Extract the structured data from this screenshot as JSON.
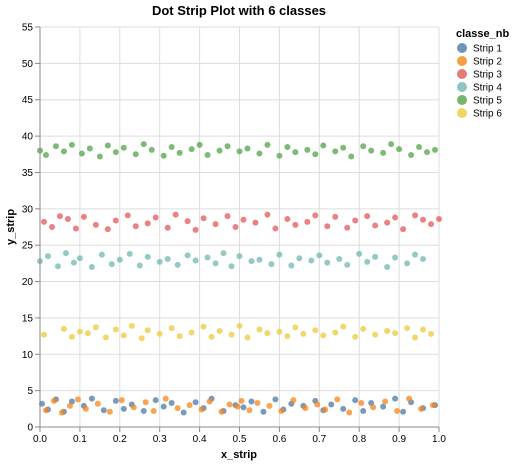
{
  "chart_data": {
    "type": "scatter",
    "title": "Dot Strip Plot with 6 classes",
    "xlabel": "x_strip",
    "ylabel": "y_strip",
    "xlim": [
      0,
      1
    ],
    "ylim": [
      0,
      55
    ],
    "x_ticks": [
      "0.0",
      "0.1",
      "0.2",
      "0.3",
      "0.4",
      "0.5",
      "0.6",
      "0.7",
      "0.8",
      "0.9",
      "1.0"
    ],
    "y_ticks": [
      "0",
      "5",
      "10",
      "15",
      "20",
      "25",
      "30",
      "35",
      "40",
      "45",
      "50",
      "55"
    ],
    "grid": true,
    "legend": {
      "title": "classe_nb",
      "position": "top-right"
    },
    "series": [
      {
        "name": "Strip 1",
        "color": "#4c78a8",
        "x": [
          0.005,
          0.02,
          0.04,
          0.06,
          0.08,
          0.11,
          0.13,
          0.16,
          0.19,
          0.21,
          0.23,
          0.26,
          0.29,
          0.31,
          0.33,
          0.36,
          0.39,
          0.41,
          0.43,
          0.46,
          0.49,
          0.51,
          0.53,
          0.56,
          0.59,
          0.61,
          0.63,
          0.66,
          0.69,
          0.71,
          0.73,
          0.76,
          0.79,
          0.81,
          0.83,
          0.86,
          0.89,
          0.91,
          0.93,
          0.96,
          0.99
        ],
        "y": [
          3.2,
          2.4,
          3.8,
          2.1,
          3.5,
          2.9,
          3.9,
          2.3,
          3.6,
          2.5,
          3.1,
          2.2,
          3.7,
          2.8,
          3.3,
          2.0,
          3.4,
          2.6,
          3.9,
          2.2,
          3.0,
          2.7,
          3.5,
          2.1,
          3.8,
          2.4,
          3.2,
          2.9,
          3.6,
          2.3,
          3.1,
          2.5,
          3.7,
          2.2,
          3.3,
          2.8,
          3.9,
          2.1,
          3.4,
          2.6,
          3.0
        ]
      },
      {
        "name": "Strip 2",
        "color": "#f58518",
        "x": [
          0.015,
          0.035,
          0.055,
          0.075,
          0.095,
          0.115,
          0.145,
          0.175,
          0.205,
          0.235,
          0.265,
          0.285,
          0.315,
          0.345,
          0.375,
          0.405,
          0.425,
          0.455,
          0.475,
          0.495,
          0.505,
          0.525,
          0.545,
          0.575,
          0.605,
          0.635,
          0.665,
          0.695,
          0.715,
          0.745,
          0.775,
          0.805,
          0.835,
          0.865,
          0.895,
          0.925,
          0.955,
          0.985
        ],
        "y": [
          2.3,
          3.6,
          2.0,
          2.9,
          3.8,
          2.5,
          3.2,
          2.1,
          3.7,
          2.7,
          3.4,
          2.2,
          3.9,
          2.6,
          3.0,
          2.4,
          3.5,
          2.1,
          3.1,
          2.8,
          3.6,
          2.3,
          3.3,
          2.9,
          2.2,
          3.7,
          2.6,
          3.1,
          2.4,
          3.8,
          2.0,
          3.3,
          2.7,
          3.5,
          2.2,
          3.9,
          2.5,
          3.0
        ]
      },
      {
        "name": "Strip 3",
        "color": "#e45756",
        "x": [
          0.01,
          0.03,
          0.05,
          0.07,
          0.09,
          0.11,
          0.14,
          0.17,
          0.19,
          0.22,
          0.24,
          0.27,
          0.29,
          0.32,
          0.34,
          0.37,
          0.39,
          0.41,
          0.44,
          0.47,
          0.49,
          0.51,
          0.54,
          0.57,
          0.59,
          0.62,
          0.64,
          0.67,
          0.69,
          0.72,
          0.74,
          0.77,
          0.79,
          0.82,
          0.84,
          0.87,
          0.89,
          0.91,
          0.94,
          0.96,
          0.98,
          1.0
        ],
        "y": [
          28.2,
          27.5,
          29.0,
          28.6,
          27.3,
          28.9,
          27.8,
          27.2,
          28.4,
          29.1,
          27.6,
          28.0,
          28.8,
          27.4,
          29.2,
          28.3,
          27.1,
          28.7,
          27.9,
          29.0,
          27.5,
          28.5,
          28.1,
          29.2,
          27.3,
          28.6,
          27.8,
          28.2,
          29.1,
          27.6,
          28.9,
          27.4,
          28.4,
          29.0,
          27.7,
          28.1,
          28.8,
          27.2,
          29.1,
          28.5,
          27.9,
          28.6
        ]
      },
      {
        "name": "Strip 4",
        "color": "#72b7b2",
        "x": [
          0.0,
          0.02,
          0.045,
          0.065,
          0.085,
          0.1,
          0.13,
          0.155,
          0.18,
          0.2,
          0.225,
          0.25,
          0.27,
          0.3,
          0.32,
          0.345,
          0.37,
          0.39,
          0.42,
          0.44,
          0.46,
          0.48,
          0.5,
          0.53,
          0.55,
          0.58,
          0.6,
          0.63,
          0.65,
          0.68,
          0.7,
          0.72,
          0.75,
          0.77,
          0.8,
          0.82,
          0.84,
          0.87,
          0.89,
          0.92,
          0.94,
          0.96
        ],
        "y": [
          22.8,
          23.5,
          22.1,
          23.9,
          22.6,
          23.2,
          22.0,
          23.7,
          22.4,
          23.0,
          23.8,
          22.2,
          23.4,
          22.7,
          23.1,
          22.3,
          23.6,
          22.9,
          23.3,
          22.5,
          23.9,
          22.1,
          23.5,
          22.8,
          23.0,
          22.4,
          23.7,
          22.2,
          23.2,
          22.9,
          23.6,
          22.6,
          23.1,
          22.3,
          23.8,
          22.7,
          23.4,
          22.0,
          23.3,
          22.5,
          23.7,
          23.1
        ]
      },
      {
        "name": "Strip 5",
        "color": "#54a24b",
        "x": [
          0.0,
          0.015,
          0.04,
          0.06,
          0.08,
          0.105,
          0.125,
          0.15,
          0.17,
          0.19,
          0.21,
          0.24,
          0.26,
          0.28,
          0.31,
          0.33,
          0.35,
          0.38,
          0.4,
          0.42,
          0.45,
          0.47,
          0.5,
          0.52,
          0.55,
          0.57,
          0.6,
          0.62,
          0.64,
          0.67,
          0.69,
          0.71,
          0.74,
          0.76,
          0.78,
          0.81,
          0.83,
          0.86,
          0.88,
          0.9,
          0.93,
          0.95,
          0.97,
          0.99
        ],
        "y": [
          38.0,
          37.4,
          38.6,
          37.9,
          38.8,
          37.6,
          38.3,
          37.2,
          38.7,
          37.8,
          38.4,
          37.5,
          38.9,
          38.1,
          37.3,
          38.5,
          37.7,
          38.2,
          38.8,
          37.4,
          38.0,
          38.6,
          37.9,
          38.3,
          37.6,
          38.8,
          37.3,
          38.5,
          37.8,
          38.1,
          37.5,
          38.7,
          37.9,
          38.4,
          37.2,
          38.6,
          38.0,
          37.7,
          38.9,
          38.2,
          37.4,
          38.5,
          37.8,
          38.1
        ]
      },
      {
        "name": "Strip 6",
        "color": "#eeca3b",
        "x": [
          0.01,
          0.06,
          0.08,
          0.1,
          0.12,
          0.14,
          0.165,
          0.19,
          0.21,
          0.23,
          0.255,
          0.27,
          0.3,
          0.33,
          0.35,
          0.38,
          0.41,
          0.43,
          0.45,
          0.48,
          0.5,
          0.52,
          0.55,
          0.57,
          0.6,
          0.62,
          0.64,
          0.66,
          0.69,
          0.71,
          0.74,
          0.76,
          0.79,
          0.81,
          0.84,
          0.87,
          0.89,
          0.92,
          0.94,
          0.96,
          0.98
        ],
        "y": [
          12.7,
          13.5,
          12.4,
          13.1,
          12.9,
          13.7,
          12.3,
          13.4,
          12.6,
          13.9,
          12.2,
          13.3,
          12.8,
          13.6,
          12.5,
          13.0,
          13.8,
          12.4,
          13.2,
          12.7,
          13.9,
          12.3,
          13.4,
          12.9,
          13.1,
          12.5,
          13.7,
          12.8,
          13.3,
          12.6,
          13.0,
          13.8,
          12.4,
          13.5,
          12.7,
          13.2,
          12.9,
          13.6,
          12.3,
          13.4,
          12.8
        ]
      }
    ]
  }
}
